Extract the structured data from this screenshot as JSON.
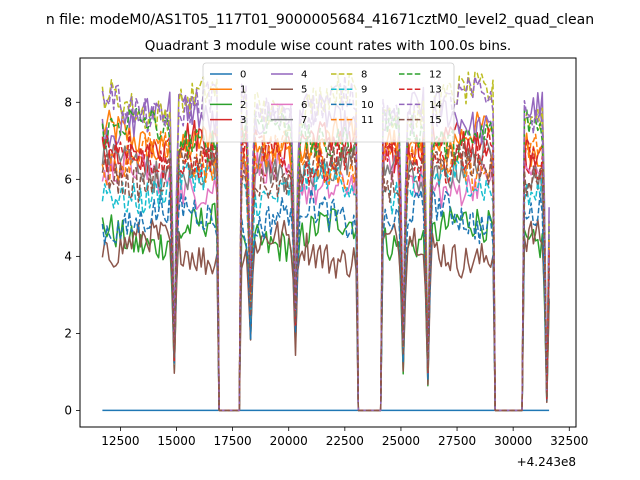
{
  "figure": {
    "suptitle": "n file: modeM0/AS1T05_117T01_9000005684_41671cztM0_level2_quad_clean",
    "title": "Quadrant 3 module wise count rates with 100.0s bins."
  },
  "chart_data": {
    "type": "line",
    "title": "Quadrant 3 module wise count rates with 100.0s bins.",
    "xlabel": "",
    "ylabel": "",
    "x_offset_label": "+4.243e8",
    "xlim": [
      10700,
      32800
    ],
    "ylim": [
      -0.43,
      9.15
    ],
    "xticks": [
      12500,
      15000,
      17500,
      20000,
      22500,
      25000,
      27500,
      30000,
      32500
    ],
    "xtick_labels": [
      "12500",
      "15000",
      "17500",
      "20000",
      "22500",
      "25000",
      "27500",
      "30000",
      "32500"
    ],
    "yticks": [
      0,
      2,
      4,
      6,
      8
    ],
    "ytick_labels": [
      "0",
      "2",
      "4",
      "6",
      "8"
    ],
    "grid": false,
    "legend_position": "top-center",
    "legend_columns": 4,
    "x_range": [
      11700,
      31600
    ],
    "bin_width": 100,
    "gaps": [
      [
        16800,
        17900
      ],
      [
        23000,
        24200
      ],
      [
        29100,
        30500
      ]
    ],
    "dips": [
      [
        14900,
        1.5
      ],
      [
        18300,
        3.0
      ],
      [
        20300,
        2.5
      ],
      [
        25100,
        1.7
      ],
      [
        26200,
        1.1
      ],
      [
        31500,
        0.35
      ]
    ],
    "series": [
      {
        "name": "0",
        "color": "#1f77b4",
        "dash": "solid",
        "level": 0.0
      },
      {
        "name": "1",
        "color": "#ff7f0e",
        "dash": "solid",
        "level": 7.0
      },
      {
        "name": "2",
        "color": "#2ca02c",
        "dash": "solid",
        "level": 4.6
      },
      {
        "name": "3",
        "color": "#d62728",
        "dash": "solid",
        "level": 6.8
      },
      {
        "name": "4",
        "color": "#9467bd",
        "dash": "solid",
        "level": 7.6
      },
      {
        "name": "5",
        "color": "#8c564b",
        "dash": "solid",
        "level": 4.2
      },
      {
        "name": "6",
        "color": "#e377c2",
        "dash": "solid",
        "level": 6.0
      },
      {
        "name": "7",
        "color": "#7f7f7f",
        "dash": "solid",
        "level": 6.3
      },
      {
        "name": "8",
        "color": "#bcbd22",
        "dash": "dashed",
        "level": 8.0
      },
      {
        "name": "9",
        "color": "#17becf",
        "dash": "dashed",
        "level": 5.8
      },
      {
        "name": "10",
        "color": "#1f77b4",
        "dash": "dashed",
        "level": 5.0
      },
      {
        "name": "11",
        "color": "#ff7f0e",
        "dash": "dashed",
        "level": 6.5
      },
      {
        "name": "12",
        "color": "#2ca02c",
        "dash": "dashed",
        "level": 7.2
      },
      {
        "name": "13",
        "color": "#d62728",
        "dash": "dashed",
        "level": 6.6
      },
      {
        "name": "14",
        "color": "#9467bd",
        "dash": "dashed",
        "level": 7.9
      },
      {
        "name": "15",
        "color": "#8c564b",
        "dash": "dashed",
        "level": 6.2
      }
    ]
  }
}
